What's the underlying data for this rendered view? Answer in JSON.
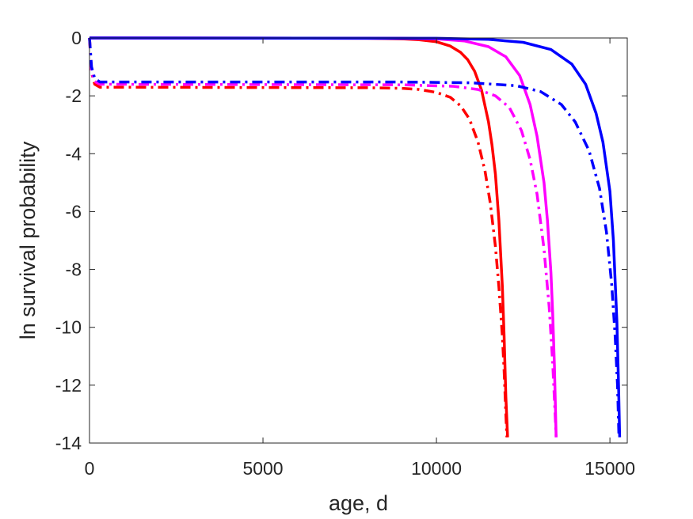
{
  "chart_data": {
    "type": "line",
    "title": "",
    "xlabel": "age, d",
    "ylabel": "ln survival probability",
    "xlim": [
      0,
      15500
    ],
    "ylim": [
      -14,
      0
    ],
    "xticks": [
      0,
      5000,
      10000,
      15000
    ],
    "yticks": [
      0,
      -2,
      -4,
      -6,
      -8,
      -10,
      -12,
      -14
    ],
    "grid": false,
    "legend": "none",
    "series": [
      {
        "color": "#ff0000",
        "style": "solid",
        "points": [
          [
            0,
            0
          ],
          [
            8000,
            -0.01
          ],
          [
            9000,
            -0.03
          ],
          [
            9500,
            -0.06
          ],
          [
            10000,
            -0.13
          ],
          [
            10400,
            -0.28
          ],
          [
            10700,
            -0.5
          ],
          [
            10900,
            -0.75
          ],
          [
            11100,
            -1.15
          ],
          [
            11300,
            -1.8
          ],
          [
            11500,
            -2.9
          ],
          [
            11600,
            -3.7
          ],
          [
            11700,
            -4.7
          ],
          [
            11800,
            -6.3
          ],
          [
            11900,
            -8.6
          ],
          [
            11950,
            -10.3
          ],
          [
            12000,
            -12.4
          ],
          [
            12050,
            -13.8
          ]
        ]
      },
      {
        "color": "#ff0000",
        "style": "dashdot",
        "points": [
          [
            0,
            0
          ],
          [
            60,
            -1.2
          ],
          [
            150,
            -1.6
          ],
          [
            300,
            -1.7
          ],
          [
            8000,
            -1.72
          ],
          [
            9000,
            -1.74
          ],
          [
            9500,
            -1.78
          ],
          [
            10000,
            -1.88
          ],
          [
            10400,
            -2.05
          ],
          [
            10700,
            -2.35
          ],
          [
            10950,
            -2.8
          ],
          [
            11200,
            -3.6
          ],
          [
            11400,
            -4.6
          ],
          [
            11550,
            -5.7
          ],
          [
            11700,
            -7.2
          ],
          [
            11800,
            -8.6
          ],
          [
            11900,
            -10.3
          ],
          [
            11950,
            -11.5
          ],
          [
            12000,
            -13.0
          ],
          [
            12030,
            -13.8
          ]
        ]
      },
      {
        "color": "#ff00ff",
        "style": "solid",
        "points": [
          [
            0,
            0
          ],
          [
            9000,
            -0.01
          ],
          [
            10000,
            -0.03
          ],
          [
            10800,
            -0.1
          ],
          [
            11500,
            -0.3
          ],
          [
            12000,
            -0.65
          ],
          [
            12400,
            -1.3
          ],
          [
            12700,
            -2.3
          ],
          [
            12900,
            -3.4
          ],
          [
            13100,
            -5.0
          ],
          [
            13200,
            -6.3
          ],
          [
            13300,
            -8.1
          ],
          [
            13350,
            -9.5
          ],
          [
            13400,
            -11.3
          ],
          [
            13450,
            -13.8
          ]
        ]
      },
      {
        "color": "#ff00ff",
        "style": "dashdot",
        "points": [
          [
            0,
            0
          ],
          [
            60,
            -1.2
          ],
          [
            150,
            -1.5
          ],
          [
            300,
            -1.6
          ],
          [
            9000,
            -1.62
          ],
          [
            10500,
            -1.67
          ],
          [
            11200,
            -1.78
          ],
          [
            11700,
            -2.0
          ],
          [
            12100,
            -2.4
          ],
          [
            12450,
            -3.2
          ],
          [
            12700,
            -4.2
          ],
          [
            12900,
            -5.4
          ],
          [
            13100,
            -7.3
          ],
          [
            13250,
            -9.3
          ],
          [
            13350,
            -11.2
          ],
          [
            13420,
            -13.0
          ],
          [
            13450,
            -13.8
          ]
        ]
      },
      {
        "color": "#0000ff",
        "style": "solid",
        "points": [
          [
            0,
            0
          ],
          [
            10000,
            -0.01
          ],
          [
            11500,
            -0.05
          ],
          [
            12500,
            -0.15
          ],
          [
            13300,
            -0.4
          ],
          [
            13900,
            -0.9
          ],
          [
            14300,
            -1.6
          ],
          [
            14600,
            -2.6
          ],
          [
            14800,
            -3.6
          ],
          [
            15000,
            -5.3
          ],
          [
            15100,
            -7.0
          ],
          [
            15200,
            -9.8
          ],
          [
            15250,
            -12.0
          ],
          [
            15280,
            -13.8
          ]
        ]
      },
      {
        "color": "#0000ff",
        "style": "dashdot",
        "points": [
          [
            0,
            0
          ],
          [
            60,
            -1.0
          ],
          [
            150,
            -1.4
          ],
          [
            300,
            -1.52
          ],
          [
            9000,
            -1.52
          ],
          [
            11000,
            -1.55
          ],
          [
            12300,
            -1.65
          ],
          [
            13000,
            -1.85
          ],
          [
            13600,
            -2.3
          ],
          [
            14000,
            -2.9
          ],
          [
            14400,
            -3.9
          ],
          [
            14700,
            -5.2
          ],
          [
            14900,
            -6.7
          ],
          [
            15050,
            -8.5
          ],
          [
            15150,
            -10.3
          ],
          [
            15220,
            -12.0
          ],
          [
            15260,
            -13.8
          ]
        ]
      }
    ]
  }
}
